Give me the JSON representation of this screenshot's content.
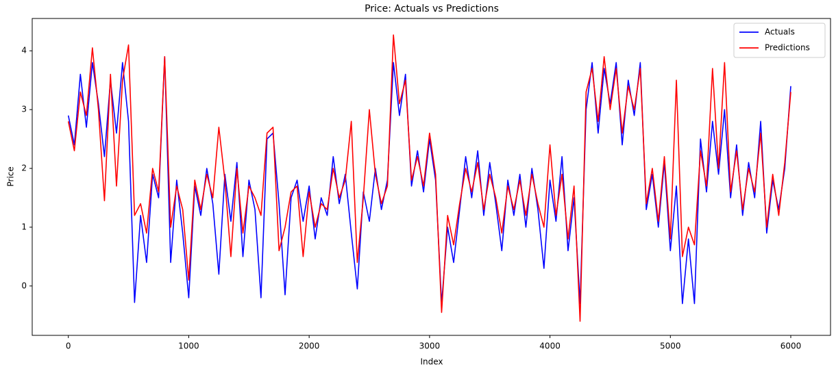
{
  "chart_data": {
    "type": "line",
    "title": "Price: Actuals vs Predictions",
    "x_label": "Index",
    "y_label": "Price",
    "x": [
      0,
      50,
      100,
      150,
      200,
      250,
      300,
      350,
      400,
      450,
      500,
      550,
      600,
      650,
      700,
      750,
      800,
      850,
      900,
      950,
      1000,
      1050,
      1100,
      1150,
      1200,
      1250,
      1300,
      1350,
      1400,
      1450,
      1500,
      1550,
      1600,
      1650,
      1700,
      1750,
      1800,
      1850,
      1900,
      1950,
      2000,
      2050,
      2100,
      2150,
      2200,
      2250,
      2300,
      2350,
      2400,
      2450,
      2500,
      2550,
      2600,
      2650,
      2700,
      2750,
      2800,
      2850,
      2900,
      2950,
      3000,
      3050,
      3100,
      3150,
      3200,
      3250,
      3300,
      3350,
      3400,
      3450,
      3500,
      3550,
      3600,
      3650,
      3700,
      3750,
      3800,
      3850,
      3900,
      3950,
      4000,
      4050,
      4100,
      4150,
      4200,
      4250,
      4300,
      4350,
      4400,
      4450,
      4500,
      4550,
      4600,
      4650,
      4700,
      4750,
      4800,
      4850,
      4900,
      4950,
      5000,
      5050,
      5100,
      5150,
      5200,
      5250,
      5300,
      5350,
      5400,
      5450,
      5500,
      5550,
      5600,
      5650,
      5700,
      5750,
      5800,
      5850,
      5900,
      5950,
      6000
    ],
    "series": [
      {
        "name": "Actuals",
        "color": "#0000ff",
        "values": [
          2.9,
          2.4,
          3.6,
          2.7,
          3.8,
          3.1,
          2.2,
          3.5,
          2.6,
          3.8,
          2.8,
          -0.28,
          1.2,
          0.4,
          1.9,
          1.5,
          3.9,
          0.4,
          1.8,
          0.9,
          -0.2,
          1.7,
          1.2,
          2.0,
          1.4,
          0.2,
          1.9,
          1.1,
          2.1,
          0.5,
          1.8,
          1.3,
          -0.2,
          2.5,
          2.6,
          1.4,
          -0.15,
          1.5,
          1.8,
          1.1,
          1.7,
          0.8,
          1.5,
          1.2,
          2.2,
          1.4,
          1.9,
          0.9,
          -0.05,
          1.6,
          1.1,
          2.0,
          1.3,
          1.8,
          3.8,
          2.9,
          3.6,
          1.7,
          2.3,
          1.6,
          2.5,
          1.8,
          -0.3,
          1.0,
          0.4,
          1.3,
          2.2,
          1.5,
          2.3,
          1.2,
          2.1,
          1.4,
          0.6,
          1.8,
          1.2,
          1.9,
          1.0,
          2.0,
          1.3,
          0.3,
          1.8,
          1.1,
          2.2,
          0.6,
          1.5,
          -0.3,
          3.0,
          3.8,
          2.6,
          3.7,
          3.1,
          3.8,
          2.4,
          3.5,
          2.9,
          3.8,
          1.3,
          1.9,
          1.0,
          2.1,
          0.6,
          1.7,
          -0.3,
          0.8,
          -0.3,
          2.5,
          1.6,
          2.8,
          1.9,
          3.0,
          1.5,
          2.4,
          1.2,
          2.1,
          1.5,
          2.8,
          0.9,
          1.8,
          1.3,
          2.0,
          3.4
        ]
      },
      {
        "name": "Predictions",
        "color": "#ff0000",
        "values": [
          2.8,
          2.3,
          3.3,
          2.9,
          4.05,
          3.0,
          1.45,
          3.6,
          1.7,
          3.5,
          4.1,
          1.2,
          1.4,
          0.9,
          2.0,
          1.6,
          3.9,
          1.0,
          1.7,
          1.3,
          0.1,
          1.8,
          1.3,
          1.9,
          1.5,
          2.7,
          1.8,
          0.5,
          2.0,
          0.9,
          1.7,
          1.5,
          1.2,
          2.6,
          2.7,
          0.6,
          1.0,
          1.6,
          1.7,
          0.5,
          1.6,
          1.0,
          1.4,
          1.3,
          2.0,
          1.5,
          1.8,
          2.8,
          0.4,
          1.5,
          3.0,
          1.9,
          1.4,
          1.7,
          4.27,
          3.1,
          3.5,
          1.8,
          2.2,
          1.7,
          2.6,
          1.9,
          -0.45,
          1.2,
          0.7,
          1.4,
          2.0,
          1.6,
          2.1,
          1.3,
          1.9,
          1.5,
          0.9,
          1.7,
          1.3,
          1.8,
          1.2,
          1.9,
          1.4,
          1.0,
          2.4,
          1.2,
          1.9,
          0.8,
          1.7,
          -0.6,
          3.3,
          3.7,
          2.8,
          3.9,
          3.0,
          3.7,
          2.6,
          3.4,
          3.0,
          3.7,
          1.4,
          2.0,
          1.1,
          2.2,
          0.8,
          3.5,
          0.5,
          1.0,
          0.7,
          2.3,
          1.7,
          3.7,
          2.0,
          3.8,
          1.6,
          2.3,
          1.3,
          2.0,
          1.6,
          2.6,
          1.0,
          1.9,
          1.2,
          2.1,
          3.3
        ]
      }
    ],
    "xlim": [
      -300,
      6330
    ],
    "ylim": [
      -0.84,
      4.55
    ],
    "xticks": [
      0,
      1000,
      2000,
      3000,
      4000,
      5000,
      6000
    ],
    "yticks": [
      0,
      1,
      2,
      3,
      4
    ],
    "legend": "upper right",
    "grid": false
  }
}
